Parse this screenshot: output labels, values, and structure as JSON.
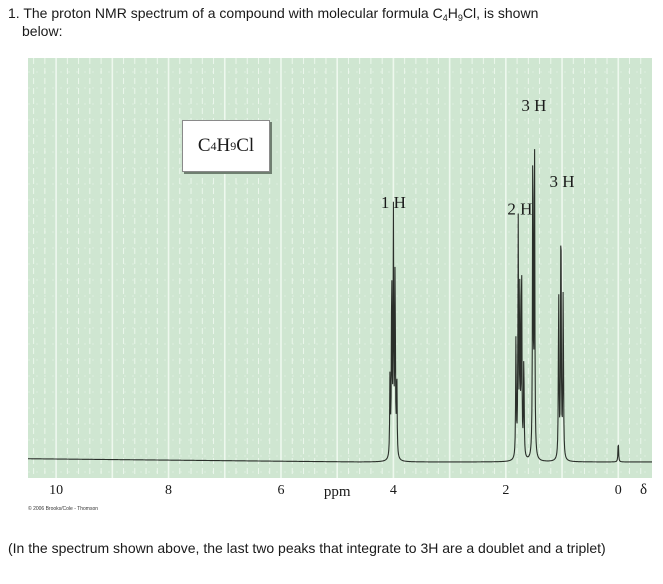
{
  "question": {
    "number": "1.",
    "line1": "The proton NMR spectrum of a compound with molecular formula C",
    "sub1": "4",
    "mid": "H",
    "sub2": "9",
    "line1_end": "Cl, is shown",
    "line2": "below:"
  },
  "formula_box": {
    "c": "C",
    "c_sub": "4",
    "h": "H",
    "h_sub": "9",
    "cl": "Cl"
  },
  "copyright": "© 2006 Brooks/Cole - Thomson",
  "footnote": "(In the spectrum shown above, the last two peaks that integrate to 3H are a doublet and a triplet)",
  "colors": {
    "plot_bg": "#cfe6d1",
    "grid": "#f2faf2",
    "trace": "#2a2f2a"
  },
  "chart_data": {
    "type": "line",
    "xlabel": "ppm",
    "xlim": [
      10.5,
      -0.6
    ],
    "x_ticks": [
      {
        "value": 10,
        "label": "10"
      },
      {
        "value": 8,
        "label": "8"
      },
      {
        "value": 6,
        "label": "6"
      },
      {
        "value": 4,
        "label": "4"
      },
      {
        "value": 2,
        "label": "2"
      },
      {
        "value": 0,
        "label": "0"
      }
    ],
    "delta_symbol": "δ",
    "grid": true,
    "peaks": [
      {
        "ppm": 4.0,
        "integration": "1 H",
        "multiplicity": "multiplet",
        "lines": [
          4.06,
          4.03,
          4.0,
          3.97,
          3.94
        ],
        "heights": [
          0.25,
          0.55,
          0.7,
          0.55,
          0.25
        ]
      },
      {
        "ppm": 1.75,
        "integration": "2 H",
        "multiplicity": "multiplet",
        "lines": [
          1.82,
          1.78,
          1.75,
          1.72,
          1.68
        ],
        "heights": [
          0.35,
          0.68,
          0.5,
          0.6,
          0.3
        ]
      },
      {
        "ppm": 1.5,
        "integration": "3 H",
        "multiplicity": "doublet",
        "lines": [
          1.52,
          1.49
        ],
        "heights": [
          0.98,
          0.93
        ]
      },
      {
        "ppm": 1.0,
        "integration": "3 H",
        "multiplicity": "triplet",
        "lines": [
          1.06,
          1.02,
          0.98
        ],
        "heights": [
          0.5,
          0.76,
          0.5
        ]
      },
      {
        "ppm": 0.0,
        "integration": "",
        "multiplicity": "reference",
        "lines": [
          0.0
        ],
        "heights": [
          0.06
        ]
      }
    ]
  }
}
